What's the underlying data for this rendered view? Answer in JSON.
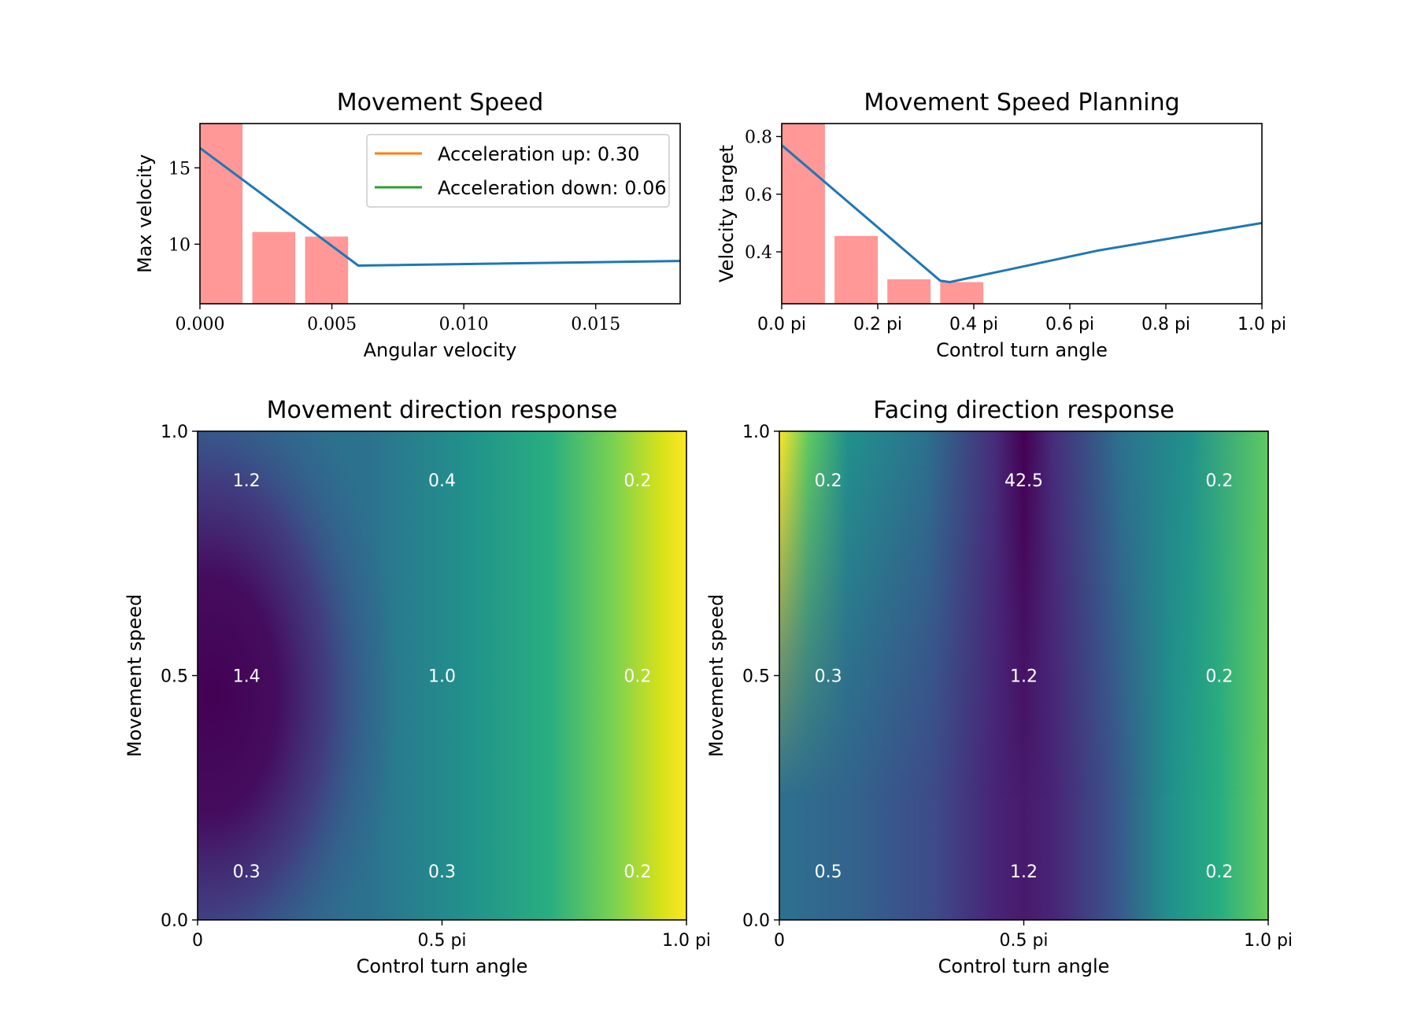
{
  "chart_data": [
    {
      "id": "speed",
      "type": "bar+line",
      "title": "Movement Speed",
      "xlabel": "Angular velocity",
      "ylabel": "Max velocity",
      "xlim": [
        0,
        0.0182
      ],
      "ylim": [
        6.1,
        17.9
      ],
      "xticks": [
        {
          "value": 0.0,
          "label": "0.000"
        },
        {
          "value": 0.005,
          "label": "0.005"
        },
        {
          "value": 0.01,
          "label": "0.010"
        },
        {
          "value": 0.015,
          "label": "0.015"
        }
      ],
      "yticks": [
        {
          "value": 10,
          "label": "10"
        },
        {
          "value": 15,
          "label": "15"
        }
      ],
      "tick_font": "serif",
      "bars": {
        "color": "#ff9896",
        "width": 0.00163,
        "items": [
          {
            "x": 0.0008,
            "value": 18.0
          },
          {
            "x": 0.0028,
            "value": 10.8
          },
          {
            "x": 0.0048,
            "value": 10.5
          }
        ]
      },
      "line": {
        "color": "#1f77b4",
        "points": [
          [
            0.0,
            16.3
          ],
          [
            0.006,
            8.6
          ],
          [
            0.0182,
            8.9
          ]
        ]
      },
      "legend": {
        "placement": "top-right",
        "entries": [
          {
            "label": "Acceleration up:  0.30",
            "color": "#ff7f0e"
          },
          {
            "label": "Acceleration down:  0.06",
            "color": "#2ca02c"
          }
        ]
      }
    },
    {
      "id": "planning",
      "type": "bar+line",
      "title": "Movement Speed Planning",
      "xlabel": "Control turn angle",
      "ylabel": "Velocity target",
      "xlim": [
        0,
        1.0
      ],
      "ylim": [
        0.22,
        0.845
      ],
      "xticks": [
        {
          "value": 0.0,
          "label": "0.0 pi"
        },
        {
          "value": 0.2,
          "label": "0.2 pi"
        },
        {
          "value": 0.4,
          "label": "0.4 pi"
        },
        {
          "value": 0.6,
          "label": "0.6 pi"
        },
        {
          "value": 0.8,
          "label": "0.8 pi"
        },
        {
          "value": 1.0,
          "label": "1.0 pi"
        }
      ],
      "yticks": [
        {
          "value": 0.4,
          "label": "0.4"
        },
        {
          "value": 0.6,
          "label": "0.6"
        },
        {
          "value": 0.8,
          "label": "0.8"
        }
      ],
      "tick_font": "sans",
      "ytick_font": "serif",
      "bars": {
        "color": "#ff9896",
        "width": 0.09,
        "items": [
          {
            "x": 0.045,
            "value": 0.85
          },
          {
            "x": 0.155,
            "value": 0.455
          },
          {
            "x": 0.265,
            "value": 0.305
          },
          {
            "x": 0.375,
            "value": 0.295
          }
        ]
      },
      "line": {
        "color": "#1f77b4",
        "points": [
          [
            0.0,
            0.77
          ],
          [
            0.33,
            0.3
          ],
          [
            0.35,
            0.295
          ],
          [
            0.66,
            0.405
          ],
          [
            1.0,
            0.5
          ]
        ]
      }
    },
    {
      "id": "movement_dir",
      "type": "heatmap",
      "title": "Movement direction response",
      "xlabel": "Control turn angle",
      "ylabel": "Movement speed",
      "colormap": "viridis",
      "xticks": [
        {
          "value": 0.0,
          "label": "0"
        },
        {
          "value": 0.5,
          "label": "0.5 pi"
        },
        {
          "value": 1.0,
          "label": "1.0 pi"
        }
      ],
      "yticks": [
        {
          "value": 0.0,
          "label": "0.0"
        },
        {
          "value": 0.5,
          "label": "0.5"
        },
        {
          "value": 1.0,
          "label": "1.0"
        }
      ],
      "cell_labels": [
        {
          "x": 0.1,
          "y": 0.9,
          "label": "1.2"
        },
        {
          "x": 0.5,
          "y": 0.9,
          "label": "0.4"
        },
        {
          "x": 0.9,
          "y": 0.9,
          "label": "0.2"
        },
        {
          "x": 0.1,
          "y": 0.5,
          "label": "1.4"
        },
        {
          "x": 0.5,
          "y": 0.5,
          "label": "1.0"
        },
        {
          "x": 0.9,
          "y": 0.5,
          "label": "0.2"
        },
        {
          "x": 0.1,
          "y": 0.1,
          "label": "0.3"
        },
        {
          "x": 0.5,
          "y": 0.1,
          "label": "0.3"
        },
        {
          "x": 0.9,
          "y": 0.1,
          "label": "0.2"
        }
      ]
    },
    {
      "id": "facing_dir",
      "type": "heatmap",
      "title": "Facing direction response",
      "xlabel": "Control turn angle",
      "ylabel": "Movement speed",
      "colormap": "viridis",
      "xticks": [
        {
          "value": 0.0,
          "label": "0"
        },
        {
          "value": 0.5,
          "label": "0.5 pi"
        },
        {
          "value": 1.0,
          "label": "1.0 pi"
        }
      ],
      "yticks": [
        {
          "value": 0.0,
          "label": "0.0"
        },
        {
          "value": 0.5,
          "label": "0.5"
        },
        {
          "value": 1.0,
          "label": "1.0"
        }
      ],
      "cell_labels": [
        {
          "x": 0.1,
          "y": 0.9,
          "label": "0.2"
        },
        {
          "x": 0.5,
          "y": 0.9,
          "label": "42.5"
        },
        {
          "x": 0.9,
          "y": 0.9,
          "label": "0.2"
        },
        {
          "x": 0.1,
          "y": 0.5,
          "label": "0.3"
        },
        {
          "x": 0.5,
          "y": 0.5,
          "label": "1.2"
        },
        {
          "x": 0.9,
          "y": 0.5,
          "label": "0.2"
        },
        {
          "x": 0.1,
          "y": 0.1,
          "label": "0.5"
        },
        {
          "x": 0.5,
          "y": 0.1,
          "label": "1.2"
        },
        {
          "x": 0.9,
          "y": 0.1,
          "label": "0.2"
        }
      ]
    }
  ]
}
